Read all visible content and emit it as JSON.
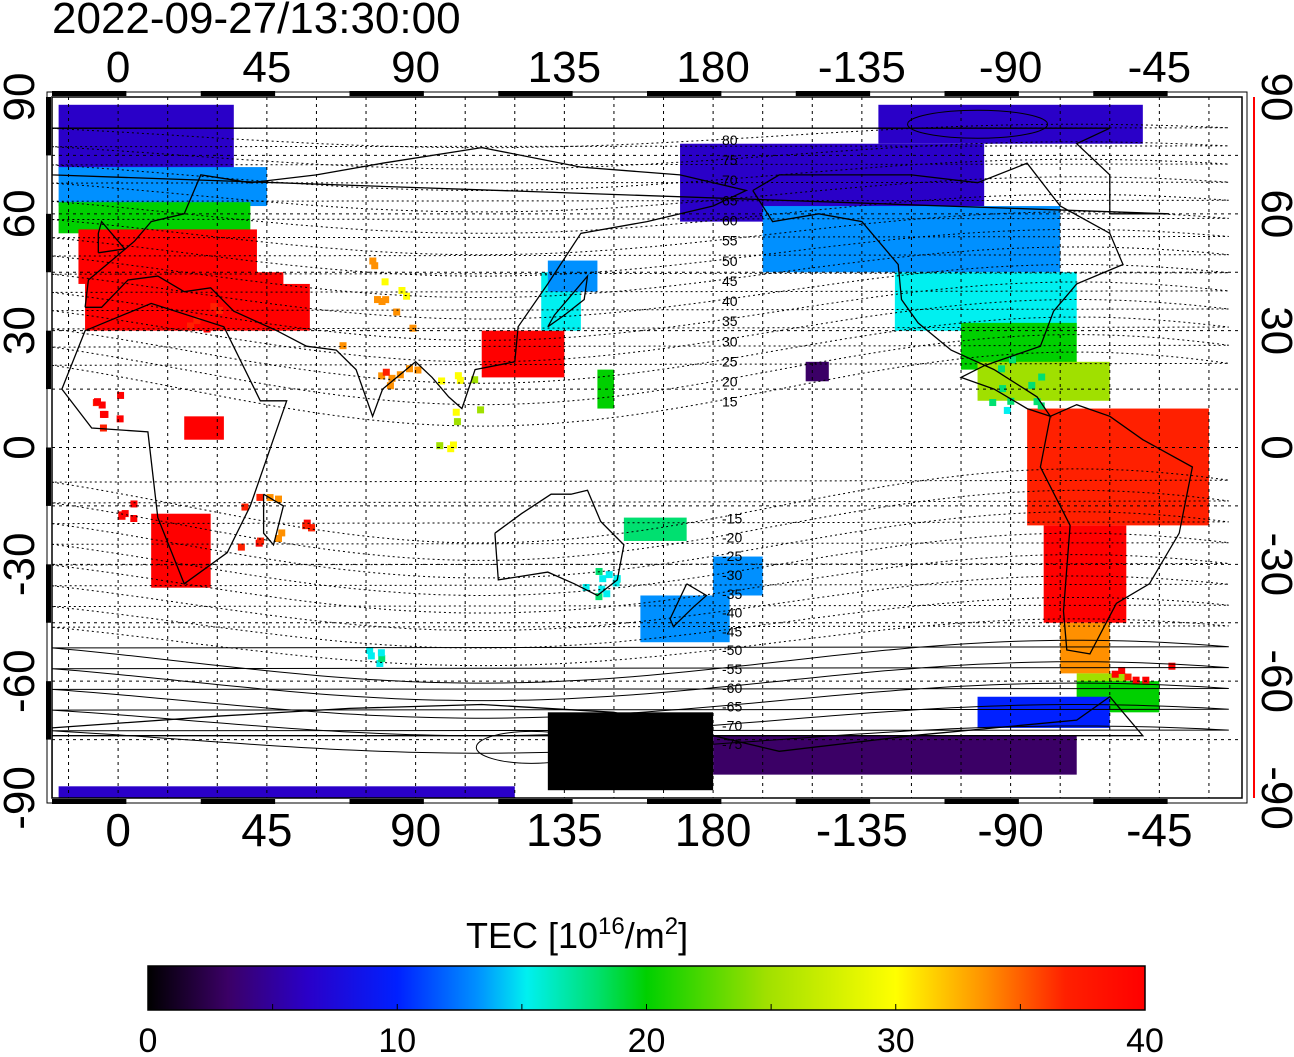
{
  "timestamp": "2022-09-27/13:30:00",
  "colorbar": {
    "label_main": "TEC  [10",
    "label_sup1": "16",
    "label_mid": "/m",
    "label_sup2": "2",
    "label_end": "]",
    "ticks": [
      "0",
      "10",
      "20",
      "30",
      "40"
    ],
    "range": [
      0,
      40
    ]
  },
  "axes": {
    "lon_ticks": [
      "0",
      "45",
      "90",
      "135",
      "180",
      "-135",
      "-90",
      "-45"
    ],
    "lat_ticks": [
      "90",
      "60",
      "30",
      "0",
      "-30",
      "-60",
      "-90"
    ]
  },
  "contour_labels_north": [
    "80",
    "75",
    "70",
    "65",
    "60",
    "55",
    "50",
    "45",
    "40",
    "35",
    "30",
    "25",
    "20",
    "15"
  ],
  "contour_labels_south": [
    "-15",
    "-20",
    "-25",
    "-30",
    "-35",
    "-40",
    "-45",
    "-50",
    "-55",
    "-60",
    "-65",
    "-70",
    "-75"
  ],
  "colors": {
    "background": "#ffffff",
    "colorscale": [
      "#000000",
      "#3b0066",
      "#2a00c8",
      "#0020ff",
      "#0090ff",
      "#00f0f0",
      "#00e070",
      "#00d000",
      "#a0e000",
      "#ffff00",
      "#ff9000",
      "#ff2000",
      "#ff0000"
    ]
  }
}
